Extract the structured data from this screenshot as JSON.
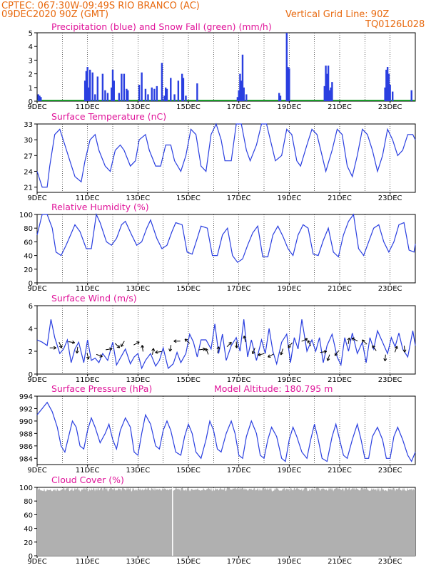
{
  "header": {
    "line1": "CPTEC:   067:30W-09:49S  RIO BRANCO (AC)",
    "line2": "09DEC2020 90Z (GMT)",
    "grid_note": "Vertical Grid Line: 90Z",
    "run_id": "TQ0126L028"
  },
  "colors": {
    "header": "#e86a10",
    "title": "#e0159a",
    "line": "#2a3fe0",
    "snow": "#1a9a2a",
    "cloud": "#b0b0b0"
  },
  "chart_data": [
    {
      "type": "bar",
      "title": "Precipitation (blue) and Snow Fall (green) (mm/h)",
      "ylim": [
        0,
        5
      ],
      "yticks": [
        0,
        1,
        2,
        3,
        4,
        5
      ],
      "xticks": [
        "9DEC",
        "11DEC",
        "13DEC",
        "15DEC",
        "17DEC",
        "19DEC",
        "21DEC",
        "23DEC"
      ],
      "xrange_days": [
        9,
        24
      ],
      "series": [
        {
          "name": "Precipitation",
          "x": [
            9.05,
            9.1,
            9.15,
            10.9,
            10.95,
            11.0,
            11.05,
            11.1,
            11.2,
            11.3,
            11.4,
            11.6,
            11.7,
            11.8,
            11.95,
            12.0,
            12.05,
            12.25,
            12.35,
            12.45,
            12.55,
            12.6,
            13.05,
            13.15,
            13.3,
            13.4,
            13.55,
            13.65,
            13.75,
            13.95,
            14.05,
            14.1,
            14.15,
            14.3,
            14.45,
            14.6,
            14.75,
            14.8,
            14.9,
            15.35,
            16.95,
            17.0,
            17.05,
            17.1,
            17.15,
            17.2,
            17.3,
            18.6,
            18.65,
            18.9,
            18.95,
            19.0,
            20.4,
            20.45,
            20.5,
            20.55,
            20.6,
            20.65,
            20.7,
            22.8,
            22.85,
            22.9,
            22.95,
            23.0,
            23.1,
            23.85
          ],
          "values": [
            0.5,
            0.4,
            0.3,
            1.5,
            2.2,
            2.5,
            1.0,
            2.3,
            2.1,
            0.5,
            1.8,
            2.0,
            0.8,
            0.6,
            1.0,
            2.3,
            1.5,
            0.6,
            2.0,
            2.0,
            0.9,
            0.8,
            1.2,
            2.1,
            0.9,
            0.5,
            1.0,
            0.9,
            1.1,
            2.8,
            0.4,
            1.0,
            0.9,
            1.7,
            0.5,
            1.5,
            2.0,
            1.7,
            0.4,
            1.3,
            0.3,
            0.8,
            2.0,
            1.5,
            3.4,
            1.0,
            0.5,
            0.6,
            0.4,
            5.0,
            2.5,
            2.4,
            1.1,
            2.6,
            2.0,
            2.6,
            0.8,
            1.0,
            1.4,
            1.0,
            2.3,
            2.5,
            2.0,
            1.2,
            0.7,
            0.8
          ]
        },
        {
          "name": "Snow Fall",
          "x": [
            9.0,
            24.0
          ],
          "values": [
            0,
            0
          ]
        }
      ]
    },
    {
      "type": "line",
      "title": "Surface Temperature (nC)",
      "ylim": [
        20,
        33
      ],
      "yticks": [
        21,
        24,
        27,
        30,
        33
      ],
      "xticks": [
        "9DEC",
        "11DEC",
        "13DEC",
        "15DEC",
        "17DEC",
        "19DEC",
        "21DEC",
        "23DEC"
      ],
      "x": [
        9.0,
        9.2,
        9.4,
        9.5,
        9.7,
        9.9,
        10.1,
        10.3,
        10.5,
        10.75,
        10.9,
        11.1,
        11.3,
        11.45,
        11.7,
        11.9,
        12.1,
        12.3,
        12.45,
        12.7,
        12.9,
        13.05,
        13.3,
        13.45,
        13.7,
        13.9,
        14.1,
        14.3,
        14.45,
        14.7,
        14.9,
        15.1,
        15.3,
        15.5,
        15.7,
        15.9,
        16.1,
        16.3,
        16.45,
        16.7,
        16.9,
        17.1,
        17.3,
        17.45,
        17.7,
        17.9,
        18.1,
        18.3,
        18.45,
        18.7,
        18.9,
        19.1,
        19.3,
        19.45,
        19.7,
        19.9,
        20.1,
        20.3,
        20.45,
        20.7,
        20.9,
        21.1,
        21.3,
        21.5,
        21.7,
        21.9,
        22.1,
        22.3,
        22.5,
        22.7,
        22.9,
        23.1,
        23.3,
        23.5,
        23.7,
        23.9,
        24.0
      ],
      "values": [
        24,
        21,
        21,
        25,
        31,
        32,
        29,
        26,
        23,
        22,
        26,
        30,
        31,
        28,
        25,
        24,
        28,
        29,
        28,
        25,
        26,
        30,
        31,
        28,
        25,
        25,
        29,
        29,
        26,
        24,
        27,
        32,
        31,
        25,
        24,
        31,
        33,
        30,
        26,
        26,
        33,
        33,
        28,
        26,
        29,
        33,
        33,
        29,
        26,
        27,
        32,
        31,
        26,
        25,
        29,
        32,
        31,
        27,
        24,
        28,
        32,
        31,
        25,
        23,
        27,
        32,
        31,
        28,
        24,
        27,
        32,
        30,
        27,
        28,
        31,
        31,
        30
      ]
    },
    {
      "type": "line",
      "title": "Relative Humidity (%)",
      "ylim": [
        0,
        100
      ],
      "yticks": [
        0,
        20,
        40,
        60,
        80,
        100
      ],
      "xticks": [
        "9DEC",
        "11DEC",
        "13DEC",
        "15DEC",
        "17DEC",
        "19DEC",
        "21DEC",
        "23DEC"
      ],
      "x": [
        9.0,
        9.2,
        9.4,
        9.6,
        9.75,
        9.95,
        10.15,
        10.35,
        10.5,
        10.7,
        10.95,
        11.15,
        11.35,
        11.5,
        11.75,
        11.95,
        12.15,
        12.35,
        12.5,
        12.75,
        12.95,
        13.15,
        13.35,
        13.5,
        13.75,
        13.95,
        14.15,
        14.35,
        14.5,
        14.75,
        14.95,
        15.15,
        15.35,
        15.5,
        15.75,
        15.95,
        16.15,
        16.35,
        16.55,
        16.75,
        16.95,
        17.15,
        17.35,
        17.55,
        17.75,
        17.95,
        18.15,
        18.35,
        18.55,
        18.75,
        18.95,
        19.15,
        19.35,
        19.55,
        19.75,
        19.95,
        20.15,
        20.35,
        20.55,
        20.75,
        20.95,
        21.15,
        21.35,
        21.55,
        21.75,
        21.95,
        22.15,
        22.35,
        22.55,
        22.75,
        22.95,
        23.15,
        23.35,
        23.55,
        23.75,
        23.95,
        24.0
      ],
      "values": [
        70,
        100,
        100,
        80,
        45,
        40,
        55,
        72,
        85,
        75,
        50,
        50,
        100,
        88,
        60,
        55,
        65,
        85,
        90,
        70,
        55,
        60,
        80,
        92,
        65,
        50,
        55,
        75,
        88,
        85,
        45,
        42,
        65,
        83,
        80,
        40,
        40,
        70,
        80,
        40,
        30,
        35,
        55,
        73,
        83,
        38,
        38,
        70,
        83,
        68,
        50,
        40,
        70,
        85,
        80,
        42,
        40,
        62,
        80,
        45,
        38,
        70,
        90,
        100,
        50,
        40,
        60,
        80,
        85,
        60,
        45,
        60,
        85,
        88,
        48,
        45,
        57
      ]
    },
    {
      "type": "line",
      "title": "Surface Wind (m/s)",
      "ylim": [
        0,
        6
      ],
      "yticks": [
        0,
        2,
        4,
        6
      ],
      "xticks": [
        "9DEC",
        "11DEC",
        "13DEC",
        "15DEC",
        "17DEC",
        "19DEC",
        "21DEC",
        "23DEC"
      ],
      "x": [
        9.0,
        9.2,
        9.4,
        9.55,
        9.7,
        9.9,
        10.05,
        10.2,
        10.35,
        10.5,
        10.65,
        10.85,
        11.0,
        11.15,
        11.3,
        11.45,
        11.6,
        11.8,
        12.0,
        12.15,
        12.3,
        12.5,
        12.7,
        12.85,
        13.0,
        13.15,
        13.3,
        13.5,
        13.7,
        13.85,
        14.0,
        14.2,
        14.4,
        14.55,
        14.7,
        14.9,
        15.05,
        15.2,
        15.35,
        15.5,
        15.7,
        15.9,
        16.05,
        16.2,
        16.35,
        16.5,
        16.7,
        16.9,
        17.05,
        17.2,
        17.35,
        17.5,
        17.7,
        17.9,
        18.05,
        18.2,
        18.35,
        18.5,
        18.7,
        18.9,
        19.05,
        19.2,
        19.35,
        19.5,
        19.7,
        19.9,
        20.05,
        20.2,
        20.35,
        20.5,
        20.7,
        20.9,
        21.05,
        21.2,
        21.35,
        21.5,
        21.7,
        21.9,
        22.05,
        22.2,
        22.35,
        22.5,
        22.7,
        22.9,
        23.05,
        23.2,
        23.35,
        23.5,
        23.7,
        23.9,
        24.0
      ],
      "values": [
        3.0,
        2.8,
        2.5,
        4.8,
        3.2,
        1.8,
        2.2,
        3.0,
        1.0,
        2.2,
        2.8,
        1.0,
        3.0,
        1.2,
        1.4,
        1.0,
        1.8,
        1.2,
        2.8,
        0.8,
        1.4,
        2.2,
        0.9,
        1.5,
        1.8,
        0.5,
        1.2,
        1.8,
        0.7,
        1.2,
        2.3,
        0.5,
        0.9,
        1.9,
        1.0,
        1.8,
        3.5,
        2.8,
        1.5,
        3.0,
        3.0,
        2.2,
        4.4,
        1.8,
        3.5,
        1.2,
        2.5,
        3.2,
        2.0,
        4.8,
        1.5,
        3.0,
        1.2,
        3.0,
        1.8,
        4.0,
        2.0,
        0.9,
        2.8,
        3.5,
        1.0,
        3.2,
        2.2,
        4.8,
        2.0,
        3.0,
        2.0,
        3.2,
        1.0,
        2.5,
        3.5,
        1.5,
        0.8,
        3.2,
        2.0,
        3.6,
        1.8,
        2.8,
        1.0,
        3.2,
        2.2,
        3.8,
        2.8,
        1.8,
        3.2,
        2.4,
        3.6,
        2.2,
        1.5,
        3.8,
        2.5
      ]
    },
    {
      "type": "line",
      "title": "Surface Pressure (hPa)",
      "annotation": "Model Altitude: 180.795  m",
      "ylim": [
        983,
        994
      ],
      "yticks": [
        984,
        986,
        988,
        990,
        992,
        994
      ],
      "xticks": [
        "9DEC",
        "11DEC",
        "13DEC",
        "15DEC",
        "17DEC",
        "19DEC",
        "21DEC",
        "23DEC"
      ],
      "x": [
        9.0,
        9.2,
        9.4,
        9.6,
        9.8,
        9.95,
        10.1,
        10.25,
        10.4,
        10.55,
        10.7,
        10.85,
        11.0,
        11.15,
        11.3,
        11.5,
        11.7,
        11.85,
        12.0,
        12.15,
        12.3,
        12.5,
        12.7,
        12.85,
        13.0,
        13.15,
        13.3,
        13.5,
        13.7,
        13.85,
        14.0,
        14.15,
        14.3,
        14.5,
        14.7,
        14.85,
        15.0,
        15.15,
        15.3,
        15.5,
        15.7,
        15.85,
        16.0,
        16.15,
        16.3,
        16.5,
        16.7,
        16.85,
        17.0,
        17.15,
        17.3,
        17.5,
        17.7,
        17.85,
        18.0,
        18.15,
        18.3,
        18.5,
        18.7,
        18.85,
        19.0,
        19.15,
        19.3,
        19.5,
        19.7,
        19.85,
        20.0,
        20.15,
        20.3,
        20.5,
        20.7,
        20.85,
        21.0,
        21.15,
        21.3,
        21.5,
        21.7,
        21.85,
        22.0,
        22.15,
        22.3,
        22.5,
        22.7,
        22.85,
        23.0,
        23.15,
        23.3,
        23.5,
        23.7,
        23.85,
        24.0
      ],
      "values": [
        991.0,
        992.0,
        993.0,
        991.5,
        989.0,
        986.0,
        985.0,
        987.5,
        990.0,
        989.0,
        986.0,
        985.5,
        988.5,
        990.5,
        989.0,
        986.5,
        988.0,
        989.5,
        987.0,
        985.5,
        988.5,
        990.5,
        989.0,
        985.0,
        984.5,
        988.0,
        991.0,
        989.5,
        986.0,
        985.5,
        988.5,
        990.0,
        988.5,
        985.0,
        984.5,
        987.5,
        989.5,
        988.0,
        985.0,
        984.0,
        987.0,
        990.0,
        988.5,
        985.5,
        985.0,
        988.0,
        990.0,
        988.0,
        984.5,
        984.0,
        987.5,
        990.0,
        988.0,
        984.5,
        984.0,
        987.0,
        989.0,
        987.5,
        984.0,
        983.5,
        987.0,
        989.0,
        987.5,
        985.0,
        984.0,
        987.0,
        989.5,
        987.0,
        984.0,
        983.5,
        987.5,
        989.5,
        987.0,
        984.5,
        984.0,
        987.0,
        989.5,
        987.0,
        984.0,
        984.0,
        987.5,
        989.0,
        987.0,
        984.0,
        984.0,
        987.5,
        989.0,
        987.0,
        984.5,
        983.5,
        985.0
      ]
    },
    {
      "type": "bar",
      "title": "Cloud Cover (%)",
      "ylim": [
        0,
        100
      ],
      "yticks": [
        0,
        20,
        40,
        60,
        80,
        100
      ],
      "xticks": [
        "9DEC",
        "11DEC",
        "13DEC",
        "15DEC",
        "17DEC",
        "19DEC",
        "21DEC",
        "23DEC"
      ],
      "level_min": 94,
      "level_max": 100,
      "gap_x": 14.35,
      "values_note": ""
    }
  ]
}
